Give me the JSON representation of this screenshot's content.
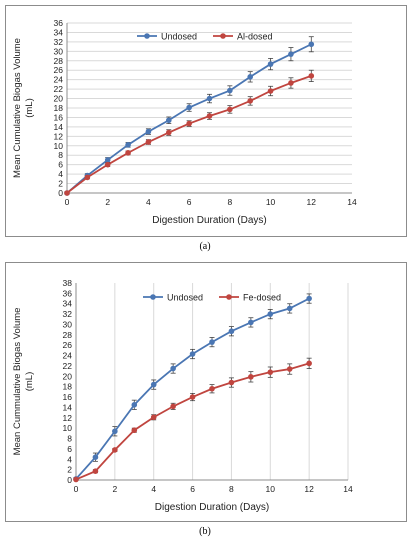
{
  "chart_data": [
    {
      "type": "line",
      "caption": "(a)",
      "xlabel": "Digestion Duration (Days)",
      "ylabel": [
        "Mean  Cumulative Biogas Volume",
        "(mL)"
      ],
      "xlim": [
        0,
        14
      ],
      "ylim": [
        0,
        36
      ],
      "xticks": [
        0,
        2,
        4,
        6,
        8,
        10,
        12,
        14
      ],
      "yticks": [
        0,
        2,
        4,
        6,
        8,
        10,
        12,
        14,
        16,
        18,
        20,
        22,
        24,
        26,
        28,
        30,
        32,
        34,
        36
      ],
      "grid": "horizontal",
      "legend": "top",
      "x": [
        0,
        1,
        2,
        3,
        4,
        5,
        6,
        7,
        8,
        9,
        10,
        11,
        12
      ],
      "series": [
        {
          "name": "Undosed",
          "color": "#4a76b3",
          "values": [
            0,
            3.7,
            7.0,
            10.2,
            13.0,
            15.4,
            18.1,
            20.0,
            21.7,
            24.6,
            27.3,
            29.4,
            31.5
          ],
          "errors": [
            0.3,
            0.4,
            0.5,
            0.5,
            0.6,
            0.7,
            0.8,
            0.9,
            1.0,
            1.1,
            1.2,
            1.4,
            1.6
          ]
        },
        {
          "name": "Al-dosed",
          "color": "#c0453f",
          "values": [
            0,
            3.3,
            6.0,
            8.5,
            10.8,
            12.8,
            14.7,
            16.3,
            17.7,
            19.5,
            21.6,
            23.3,
            24.8
          ],
          "errors": [
            0.2,
            0.3,
            0.4,
            0.4,
            0.5,
            0.6,
            0.6,
            0.7,
            0.8,
            0.9,
            1.0,
            1.1,
            1.2
          ]
        }
      ]
    },
    {
      "type": "line",
      "caption": "(b)",
      "xlabel": "Digestion Duration (Days)",
      "ylabel": [
        "Mean  Cummulative Biogas Volume",
        "(mL)"
      ],
      "xlim": [
        0,
        14
      ],
      "ylim": [
        0,
        38
      ],
      "xticks": [
        0,
        2,
        4,
        6,
        8,
        10,
        12,
        14
      ],
      "yticks": [
        0,
        2,
        4,
        6,
        8,
        10,
        12,
        14,
        16,
        18,
        20,
        22,
        24,
        26,
        28,
        30,
        32,
        34,
        36,
        38
      ],
      "grid": "vertical",
      "legend": "top",
      "x": [
        0,
        1,
        2,
        3,
        4,
        5,
        6,
        7,
        8,
        9,
        10,
        11,
        12
      ],
      "series": [
        {
          "name": "Undosed",
          "color": "#4a76b3",
          "values": [
            0.2,
            4.4,
            9.4,
            14.5,
            18.4,
            21.5,
            24.3,
            26.6,
            28.7,
            30.4,
            32.0,
            33.1,
            35.0
          ],
          "errors": [
            0.3,
            0.8,
            0.9,
            0.9,
            0.9,
            0.9,
            0.9,
            0.9,
            0.9,
            0.9,
            0.9,
            0.9,
            0.9
          ]
        },
        {
          "name": "Fe-dosed",
          "color": "#c0453f",
          "values": [
            0.1,
            1.7,
            5.8,
            9.6,
            12.1,
            14.2,
            16.0,
            17.6,
            18.8,
            19.9,
            20.8,
            21.4,
            22.5
          ],
          "errors": [
            0.2,
            0.3,
            0.3,
            0.4,
            0.5,
            0.6,
            0.7,
            0.8,
            0.9,
            1.0,
            1.0,
            1.0,
            1.0
          ]
        }
      ]
    }
  ]
}
